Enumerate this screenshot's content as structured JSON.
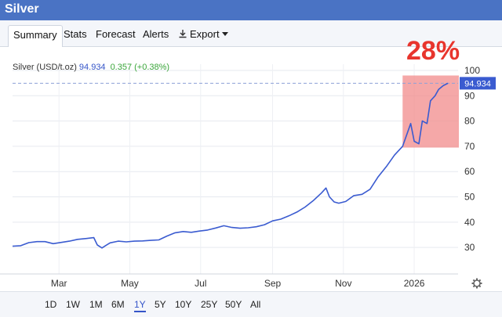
{
  "window": {
    "title": "Silver"
  },
  "tabs": [
    {
      "label": "Summary",
      "active": true
    },
    {
      "label": "Stats"
    },
    {
      "label": "Forecast"
    },
    {
      "label": "Alerts"
    },
    {
      "label": "Export",
      "icon": "download-icon",
      "dropdown": true
    }
  ],
  "legend": {
    "name": "Silver (USD/t.oz)",
    "price": "94.934",
    "change": "0.357 (+0.38%)"
  },
  "annotation": {
    "text": "28%",
    "color": "#e8352d",
    "highlight_color": "#f28b8b"
  },
  "colors": {
    "line": "#3a5bd0",
    "price_tag": "#3a5bd0",
    "header": "#4a73c4",
    "change": "#3aa63a"
  },
  "ranges": [
    {
      "label": "1D"
    },
    {
      "label": "1W"
    },
    {
      "label": "1M"
    },
    {
      "label": "6M"
    },
    {
      "label": "1Y",
      "active": true
    },
    {
      "label": "5Y"
    },
    {
      "label": "10Y"
    },
    {
      "label": "25Y"
    },
    {
      "label": "50Y"
    },
    {
      "label": "All"
    }
  ],
  "settings_icon": "gear-icon",
  "chart_data": {
    "type": "line",
    "ylim": [
      22,
      100
    ],
    "yticks": [
      30,
      40,
      50,
      60,
      70,
      80,
      90,
      100
    ],
    "xticks": [
      "Mar",
      "May",
      "Jul",
      "Sep",
      "Nov",
      "2026"
    ],
    "xtick_dates": [
      "2025-03-01",
      "2025-05-01",
      "2025-07-01",
      "2025-09-01",
      "2025-11-01",
      "2026-01-01"
    ],
    "last_price_label": "94.934",
    "last_price": 94.934,
    "grid": true,
    "series": [
      {
        "x": [
          "2025-01-20",
          "2025-01-27",
          "2025-02-03",
          "2025-02-10",
          "2025-02-17",
          "2025-02-24",
          "2025-03-03",
          "2025-03-10",
          "2025-03-17",
          "2025-03-24",
          "2025-03-31",
          "2025-04-03",
          "2025-04-07",
          "2025-04-10",
          "2025-04-14",
          "2025-04-21",
          "2025-04-28",
          "2025-05-05",
          "2025-05-12",
          "2025-05-19",
          "2025-05-26",
          "2025-06-02",
          "2025-06-09",
          "2025-06-16",
          "2025-06-23",
          "2025-06-30",
          "2025-07-07",
          "2025-07-14",
          "2025-07-21",
          "2025-07-28",
          "2025-08-04",
          "2025-08-11",
          "2025-08-18",
          "2025-08-25",
          "2025-09-01",
          "2025-09-08",
          "2025-09-15",
          "2025-09-22",
          "2025-09-29",
          "2025-10-06",
          "2025-10-13",
          "2025-10-17",
          "2025-10-20",
          "2025-10-24",
          "2025-10-28",
          "2025-11-03",
          "2025-11-10",
          "2025-11-17",
          "2025-11-24",
          "2025-12-01",
          "2025-12-08",
          "2025-12-15",
          "2025-12-22",
          "2025-12-29",
          "2026-01-01",
          "2026-01-05",
          "2026-01-08",
          "2026-01-12",
          "2026-01-15",
          "2026-01-19",
          "2026-01-22",
          "2026-01-26",
          "2026-01-30"
        ],
        "values": [
          30.5,
          30.7,
          31.9,
          32.3,
          32.3,
          31.5,
          32.0,
          32.5,
          33.2,
          33.5,
          33.9,
          31.0,
          29.8,
          30.7,
          31.8,
          32.5,
          32.2,
          32.5,
          32.6,
          32.8,
          33.0,
          34.5,
          35.8,
          36.3,
          36.0,
          36.5,
          36.9,
          37.7,
          38.6,
          37.9,
          37.6,
          37.8,
          38.2,
          39.0,
          40.5,
          41.2,
          42.5,
          44.0,
          46.0,
          48.5,
          51.5,
          53.5,
          50.0,
          48.0,
          47.5,
          48.2,
          50.5,
          51.0,
          53.0,
          58.0,
          62.0,
          66.5,
          70.0,
          79.0,
          72.0,
          71.0,
          80.0,
          79.0,
          88.0,
          90.0,
          92.5,
          94.0,
          94.934
        ]
      }
    ]
  }
}
